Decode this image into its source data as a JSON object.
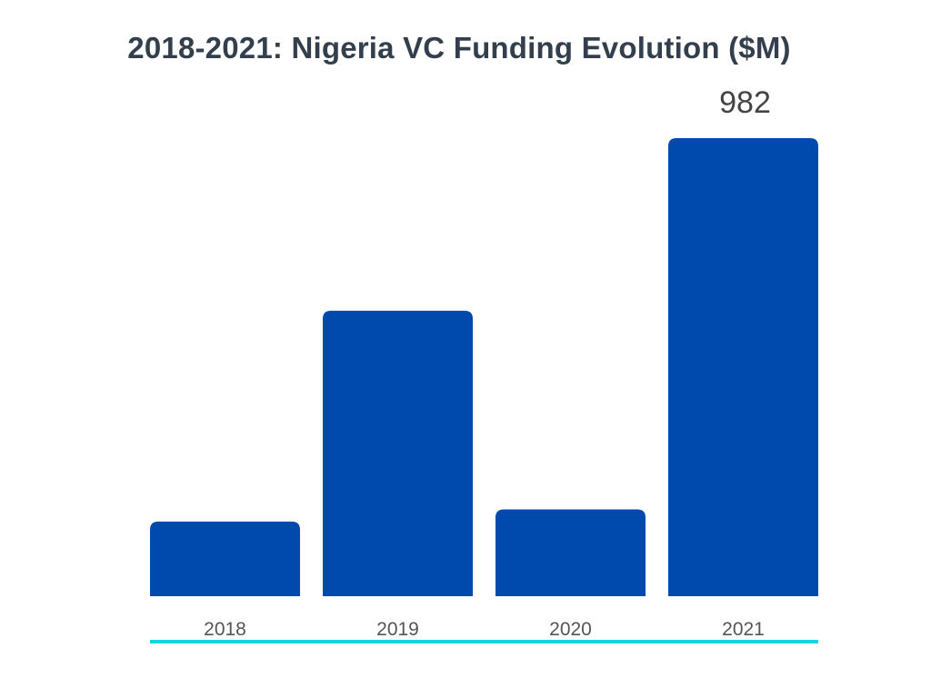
{
  "chart_data": {
    "type": "bar",
    "title": "2018-2021: Nigeria VC Funding Evolution ($M)",
    "categories": [
      "2018",
      "2019",
      "2020",
      "2021"
    ],
    "values": [
      160,
      612,
      186,
      982
    ],
    "data_labels": [
      "",
      "",
      "",
      "982"
    ],
    "xlabel": "",
    "ylabel": "",
    "ylim": [
      0,
      982
    ],
    "grid": false,
    "legend": "none",
    "colors": {
      "bar": "#004aad",
      "baseline": "#1ad3e0",
      "tick_label": "#555555",
      "data_label": "#444444",
      "title": "#333f4d"
    }
  }
}
